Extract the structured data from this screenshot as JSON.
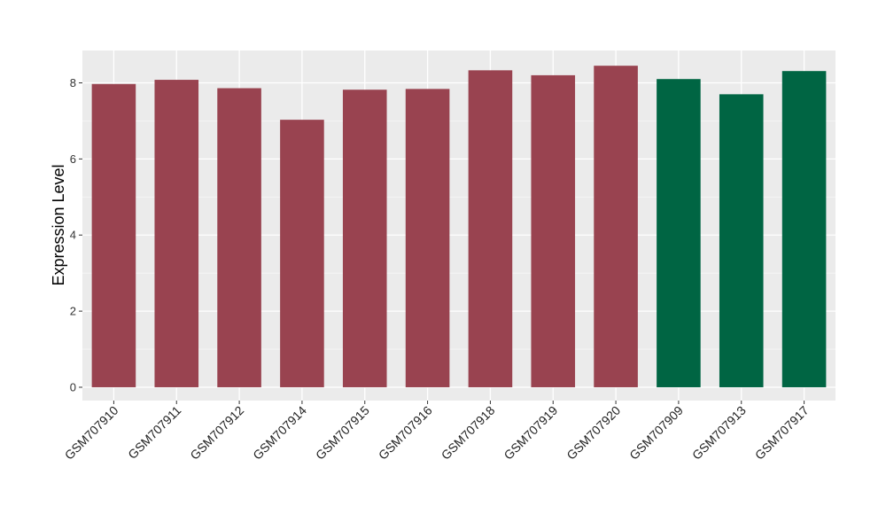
{
  "chart_data": {
    "type": "bar",
    "title": "",
    "xlabel": "",
    "ylabel": "Expression Level",
    "ylim": [
      -0.35,
      8.85
    ],
    "yticks": [
      0,
      2,
      4,
      6,
      8
    ],
    "grid": true,
    "background": "#EBEBEB",
    "categories": [
      "GSM707910",
      "GSM707911",
      "GSM707912",
      "GSM707914",
      "GSM707915",
      "GSM707916",
      "GSM707918",
      "GSM707919",
      "GSM707920",
      "GSM707909",
      "GSM707913",
      "GSM707917"
    ],
    "values": [
      7.97,
      8.08,
      7.86,
      7.03,
      7.82,
      7.84,
      8.33,
      8.2,
      8.45,
      8.1,
      7.7,
      8.31
    ],
    "groups": [
      "a",
      "a",
      "a",
      "a",
      "a",
      "a",
      "a",
      "a",
      "a",
      "b",
      "b",
      "b"
    ],
    "colors": {
      "a": "#994350",
      "b": "#006543"
    }
  }
}
